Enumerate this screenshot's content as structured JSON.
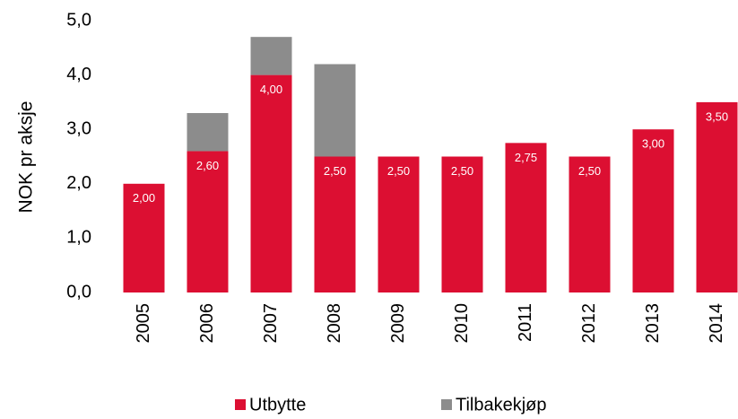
{
  "chart_data": {
    "type": "stacked_bar",
    "categories": [
      "2005",
      "2006",
      "2007",
      "2008",
      "2009",
      "2010",
      "2011",
      "2012",
      "2013",
      "2014"
    ],
    "series": [
      {
        "name": "Utbytte",
        "color": "#dc0f32",
        "values": [
          2.0,
          2.6,
          4.0,
          2.5,
          2.5,
          2.5,
          2.75,
          2.5,
          3.0,
          3.5
        ],
        "value_labels": [
          "2,00",
          "2,60",
          "4,00",
          "2,50",
          "2,50",
          "2,50",
          "2,75",
          "2,50",
          "3,00",
          "3,50"
        ]
      },
      {
        "name": "Tilbakekjøp",
        "color": "#8c8c8c",
        "values": [
          0,
          0.7,
          0.7,
          1.7,
          0,
          0,
          0,
          0,
          0,
          0
        ]
      }
    ],
    "y_axis_label": "NOK pr aksje",
    "ylim": [
      0,
      5
    ],
    "yticks": [
      {
        "value": 0,
        "label": "0,0"
      },
      {
        "value": 1,
        "label": "1,0"
      },
      {
        "value": 2,
        "label": "2,0"
      },
      {
        "value": 3,
        "label": "3,0"
      },
      {
        "value": 4,
        "label": "4,0"
      },
      {
        "value": 5,
        "label": "5,0"
      }
    ],
    "grid": false
  }
}
